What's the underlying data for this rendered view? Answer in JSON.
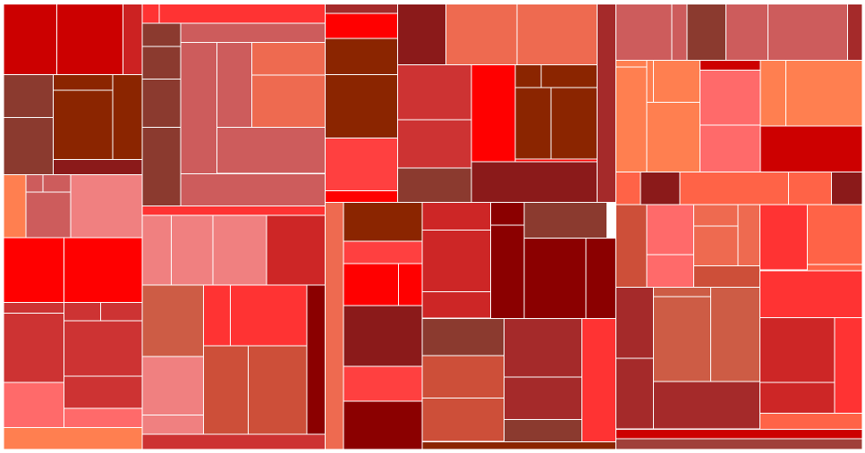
{
  "chart_data": {
    "type": "treemap",
    "title": "",
    "legend": "none",
    "series": [
      {
        "name": "",
        "rects": [
          [
            "#cc0000",
            3.9,
            4.7,
            59.6,
            79.0
          ],
          [
            "#cc0000",
            63.5,
            4.7,
            73.8,
            79.0
          ],
          [
            "#cc2222",
            137.3,
            4.7,
            21.6,
            79.0
          ],
          [
            "#8b3a2f",
            3.9,
            83.7,
            55.6,
            47.7
          ],
          [
            "#8b2500",
            59.5,
            83.7,
            66.5,
            17.4
          ],
          [
            "#8b2500",
            126.0,
            83.7,
            32.9,
            95.0
          ],
          [
            "#8b2500",
            59.5,
            101.1,
            66.5,
            77.6
          ],
          [
            "#8b3a2f",
            3.9,
            131.4,
            55.6,
            64.0
          ],
          [
            "#8b1a1a",
            59.5,
            178.7,
            99.4,
            16.7
          ],
          [
            "#ff7f50",
            3.9,
            195.4,
            25.3,
            70.7
          ],
          [
            "#cd5c5c",
            29.2,
            195.4,
            19.0,
            19.4
          ],
          [
            "#cd5c5c",
            48.2,
            195.4,
            30.9,
            19.4
          ],
          [
            "#cd5c5c",
            29.2,
            214.8,
            49.9,
            51.3
          ],
          [
            "#f08080",
            79.1,
            195.4,
            79.8,
            70.7
          ],
          [
            "#ff0000",
            3.9,
            266.1,
            67.6,
            72.5
          ],
          [
            "#ff0000",
            71.5,
            266.1,
            87.4,
            72.5
          ],
          [
            "#cd3333",
            3.9,
            338.6,
            67.6,
            12.0
          ],
          [
            "#cd3333",
            71.5,
            338.6,
            40.9,
            20.4
          ],
          [
            "#cd3333",
            112.4,
            338.6,
            46.5,
            20.4
          ],
          [
            "#cd3333",
            3.9,
            350.6,
            67.6,
            77.2
          ],
          [
            "#cd3333",
            71.5,
            359.0,
            87.4,
            62.2
          ],
          [
            "#cd3333",
            71.5,
            421.2,
            87.4,
            35.7
          ],
          [
            "#ff6a6a",
            3.9,
            427.8,
            67.6,
            50.7
          ],
          [
            "#ff6a6a",
            71.5,
            456.9,
            87.4,
            21.6
          ],
          [
            "#ff7f50",
            3.9,
            478.5,
            155.0,
            24.4
          ]
        ]
      },
      {
        "name": "",
        "rects": [
          [
            "#ff3333",
            159.0,
            4.7,
            18.8,
            21.3
          ],
          [
            "#ff3333",
            177.8,
            4.7,
            185.5,
            21.3
          ],
          [
            "#8b3a2f",
            159.0,
            26.0,
            43.2,
            26.2
          ],
          [
            "#cd5c5c",
            202.2,
            26.0,
            161.1,
            21.3
          ],
          [
            "#8b3a2f",
            159.0,
            52.2,
            43.2,
            36.3
          ],
          [
            "#8b3a2f",
            159.0,
            88.5,
            43.2,
            54.0
          ],
          [
            "#8b3a2f",
            159.0,
            142.5,
            43.2,
            87.8
          ],
          [
            "#cd5c5c",
            202.2,
            47.3,
            40.5,
            147.4
          ],
          [
            "#cd5c5c",
            242.7,
            47.3,
            38.6,
            95.2
          ],
          [
            "#ee6a50",
            281.3,
            47.3,
            82.0,
            36.9
          ],
          [
            "#ee6a50",
            281.3,
            84.2,
            82.0,
            58.3
          ],
          [
            "#cd5c5c",
            242.7,
            142.5,
            120.6,
            51.4
          ],
          [
            "#cd5c5c",
            202.2,
            194.7,
            161.1,
            35.6
          ],
          [
            "#ff3333",
            159.0,
            230.3,
            204.3,
            10.7
          ],
          [
            "#f08080",
            159.0,
            241.0,
            32.3,
            78.1
          ],
          [
            "#f08080",
            191.3,
            241.0,
            46.5,
            78.1
          ],
          [
            "#f08080",
            237.8,
            241.0,
            60.3,
            78.1
          ],
          [
            "#cd2626",
            298.1,
            241.0,
            65.2,
            78.1
          ],
          [
            "#cd5c45",
            159.0,
            319.1,
            68.3,
            79.9
          ],
          [
            "#f08080",
            159.0,
            399.0,
            68.3,
            65.6
          ],
          [
            "#f08080",
            159.0,
            464.6,
            68.3,
            21.2
          ],
          [
            "#ff3333",
            227.3,
            319.1,
            30.4,
            67.9
          ],
          [
            "#ff3333",
            257.7,
            319.1,
            85.4,
            67.9
          ],
          [
            "#cd4f39",
            227.3,
            387.0,
            50.4,
            98.8
          ],
          [
            "#cd4f39",
            277.7,
            387.0,
            65.4,
            98.8
          ],
          [
            "#8b0000",
            343.1,
            319.1,
            20.2,
            166.7
          ],
          [
            "#cd3333",
            159.0,
            485.8,
            204.3,
            17.1
          ]
        ]
      },
      {
        "name": "",
        "rects": [
          [
            "#a52a2a",
            363.3,
            4.7,
            81.1,
            10.1
          ],
          [
            "#ff0000",
            363.3,
            14.8,
            81.1,
            28.3
          ],
          [
            "#8b2500",
            363.3,
            43.1,
            81.1,
            40.6
          ],
          [
            "#8b2500",
            363.3,
            83.7,
            81.1,
            70.9
          ],
          [
            "#ff4040",
            363.3,
            154.6,
            81.1,
            58.7
          ],
          [
            "#ff0000",
            363.3,
            213.3,
            81.1,
            13.1
          ],
          [
            "#8b1a1a",
            444.4,
            4.7,
            54.3,
            67.7
          ],
          [
            "#ee6a50",
            498.7,
            4.7,
            79.4,
            67.7
          ],
          [
            "#ee6a50",
            578.1,
            4.7,
            89.4,
            67.7
          ],
          [
            "#a52a2a",
            667.5,
            4.7,
            20.8,
            221.7
          ],
          [
            "#cd3333",
            444.4,
            72.4,
            82.6,
            61.5
          ],
          [
            "#cd3333",
            444.4,
            133.9,
            82.6,
            54.0
          ],
          [
            "#8b3a2f",
            444.4,
            187.9,
            82.6,
            38.5
          ],
          [
            "#ff0000",
            527.0,
            72.4,
            49.0,
            108.7
          ],
          [
            "#8b2500",
            576.0,
            72.4,
            29.1,
            25.4
          ],
          [
            "#8b2500",
            605.1,
            72.4,
            62.4,
            25.4
          ],
          [
            "#8b2500",
            576.0,
            97.8,
            40.0,
            80.2
          ],
          [
            "#8b2500",
            616.0,
            97.8,
            51.5,
            80.2
          ],
          [
            "#ff0000",
            576.0,
            178.0,
            91.5,
            3.1
          ],
          [
            "#8b1a1a",
            527.0,
            181.1,
            140.5,
            45.3
          ],
          [
            "#ee6a50",
            363.3,
            226.4,
            20.8,
            276.5
          ],
          [
            "#8b2500",
            384.1,
            226.4,
            88.1,
            43.8
          ],
          [
            "#ff4040",
            384.1,
            270.2,
            88.1,
            24.8
          ],
          [
            "#ff0000",
            384.1,
            295.0,
            61.4,
            47.1
          ],
          [
            "#ff0000",
            445.5,
            295.0,
            26.7,
            47.1
          ],
          [
            "#8b1a1a",
            384.1,
            342.1,
            88.1,
            67.7
          ],
          [
            "#ff4040",
            384.1,
            409.8,
            88.1,
            39.1
          ],
          [
            "#8b0000",
            384.1,
            448.9,
            88.1,
            54.0
          ],
          [
            "#cd2626",
            472.2,
            226.4,
            76.2,
            31.1
          ],
          [
            "#cd2626",
            472.2,
            257.5,
            76.2,
            68.8
          ],
          [
            "#cd2626",
            472.2,
            326.3,
            76.2,
            29.5
          ],
          [
            "#8b0000",
            548.4,
            226.4,
            37.6,
            25.8
          ],
          [
            "#8b0000",
            548.4,
            252.2,
            37.6,
            104.1
          ],
          [
            "#8b3a2f",
            586.0,
            226.4,
            92.5,
            40.3
          ],
          [
            "#8b0000",
            586.0,
            266.7,
            69.2,
            89.8
          ],
          [
            "#8b0000",
            655.2,
            266.7,
            33.1,
            89.8
          ],
          [
            "#8b3a2f",
            472.2,
            356.3,
            91.4,
            41.6
          ],
          [
            "#cd4f39",
            472.2,
            397.9,
            91.4,
            47.8
          ],
          [
            "#cd4f39",
            472.2,
            445.7,
            91.4,
            48.5
          ],
          [
            "#a52a2a",
            563.6,
            356.3,
            86.9,
            65.7
          ],
          [
            "#a52a2a",
            563.6,
            422.0,
            86.9,
            47.4
          ],
          [
            "#8b3a2f",
            563.6,
            469.4,
            86.9,
            25.1
          ],
          [
            "#ff3333",
            650.5,
            356.3,
            37.8,
            138.2
          ],
          [
            "#8b2500",
            472.2,
            494.5,
            216.1,
            8.4
          ]
        ]
      },
      {
        "name": "",
        "rects": [
          [
            "#cd5c5c",
            688.3,
            4.7,
            62.6,
            62.9
          ],
          [
            "#cd5c5c",
            750.9,
            4.7,
            17.0,
            62.9
          ],
          [
            "#8b3a2f",
            767.9,
            4.7,
            43.4,
            62.9
          ],
          [
            "#cd5c5c",
            811.3,
            4.7,
            47.2,
            62.9
          ],
          [
            "#cd5c5c",
            858.5,
            4.7,
            88.8,
            62.9
          ],
          [
            "#a52a2a",
            947.3,
            4.7,
            16.7,
            62.9
          ],
          [
            "#ff7f50",
            688.3,
            67.6,
            34.9,
            7.5
          ],
          [
            "#ff7f50",
            688.3,
            75.1,
            34.9,
            117.4
          ],
          [
            "#ff7f50",
            723.2,
            67.6,
            7.2,
            46.7
          ],
          [
            "#ff7f50",
            730.4,
            67.6,
            51.9,
            46.7
          ],
          [
            "#ff7f50",
            723.2,
            114.3,
            59.1,
            78.2
          ],
          [
            "#cd0000",
            782.3,
            67.6,
            67.8,
            10.8
          ],
          [
            "#ff6a6a",
            782.3,
            78.4,
            67.8,
            61.6
          ],
          [
            "#ff6a6a",
            782.3,
            140.0,
            67.8,
            52.5
          ],
          [
            "#ff7f50",
            850.1,
            67.6,
            28.6,
            73.2
          ],
          [
            "#ff7f50",
            878.7,
            67.6,
            85.3,
            73.2
          ],
          [
            "#cd0000",
            850.1,
            140.8,
            113.9,
            51.7
          ],
          [
            "#ff6347",
            688.3,
            192.5,
            27.8,
            36.7
          ],
          [
            "#8b1a1a",
            716.1,
            192.5,
            43.7,
            36.7
          ],
          [
            "#ff6347",
            759.8,
            192.5,
            121.7,
            36.7
          ],
          [
            "#ff6347",
            881.5,
            192.5,
            48.2,
            36.7
          ],
          [
            "#8b1a1a",
            929.7,
            192.5,
            34.3,
            36.7
          ],
          [
            "#cd4f39",
            688.3,
            229.2,
            34.7,
            92.4
          ],
          [
            "#ff6a6a",
            723.0,
            229.2,
            52.3,
            56.0
          ],
          [
            "#ff6a6a",
            723.0,
            285.2,
            52.3,
            36.4
          ],
          [
            "#ee6a50",
            775.3,
            229.2,
            49.5,
            23.7
          ],
          [
            "#ee6a50",
            775.3,
            252.9,
            49.5,
            44.5
          ],
          [
            "#ee6a50",
            824.8,
            229.2,
            24.9,
            68.2
          ],
          [
            "#cd4f39",
            775.3,
            297.4,
            74.4,
            24.2
          ],
          [
            "#ff3333",
            849.7,
            229.2,
            52.6,
            73.0
          ],
          [
            "#ff6347",
            902.3,
            229.2,
            61.7,
            66.6
          ],
          [
            "#ff6347",
            902.3,
            295.8,
            61.7,
            7.4
          ],
          [
            "#a52a2a",
            688.3,
            321.6,
            42.0,
            79.4
          ],
          [
            "#a52a2a",
            688.3,
            401.0,
            42.0,
            79.2
          ],
          [
            "#cd5c45",
            730.3,
            321.6,
            64.3,
            10.5
          ],
          [
            "#cd5c45",
            730.3,
            332.1,
            64.3,
            95.0
          ],
          [
            "#cd5c45",
            794.6,
            321.6,
            55.1,
            105.5
          ],
          [
            "#a52a2a",
            730.3,
            427.1,
            119.4,
            53.1
          ],
          [
            "#ff3333",
            849.7,
            303.2,
            114.3,
            52.2
          ],
          [
            "#cd2626",
            849.7,
            355.4,
            83.1,
            72.4
          ],
          [
            "#cd2626",
            849.7,
            427.8,
            83.1,
            34.6
          ],
          [
            "#ff3333",
            932.8,
            355.4,
            31.2,
            107.0
          ],
          [
            "#ff6347",
            849.7,
            462.4,
            114.3,
            18.1
          ],
          [
            "#cd0000",
            688.3,
            480.5,
            275.7,
            10.4
          ],
          [
            "#a0403a",
            688.3,
            490.9,
            275.7,
            12.0
          ]
        ]
      }
    ]
  }
}
